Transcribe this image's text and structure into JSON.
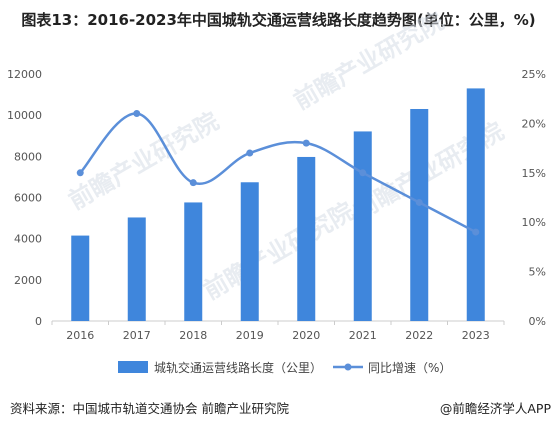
{
  "chart_data": {
    "type": "bar",
    "title": "图表13：2016-2023年中国城轨交通运营线路长度趋势图(单位：公里，%)",
    "categories": [
      "2016",
      "2017",
      "2018",
      "2019",
      "2020",
      "2021",
      "2022",
      "2023"
    ],
    "series": [
      {
        "name": "城轨交通运营线路长度（公里）",
        "type": "bar",
        "axis": "left",
        "color": "#3f86dc",
        "values": [
          4150,
          5030,
          5760,
          6740,
          7970,
          9210,
          10300,
          11300
        ]
      },
      {
        "name": "同比增速（%）",
        "type": "line",
        "axis": "right",
        "color": "#5b8fd9",
        "values": [
          15,
          21,
          14,
          17,
          18,
          15,
          12,
          9
        ]
      }
    ],
    "left_axis": {
      "min": 0,
      "max": 12000,
      "ticks": [
        "0",
        "2000",
        "4000",
        "6000",
        "8000",
        "10000",
        "12000"
      ]
    },
    "right_axis": {
      "min": 0,
      "max": 25,
      "ticks": [
        "0%",
        "5%",
        "10%",
        "15%",
        "20%",
        "25%"
      ]
    },
    "legend_position": "bottom",
    "grid": false,
    "source": "资料来源：中国城市轨道交通协会 前瞻产业研究院",
    "brand": "@前瞻经济学人APP",
    "watermark": "前瞻产业研究院"
  }
}
